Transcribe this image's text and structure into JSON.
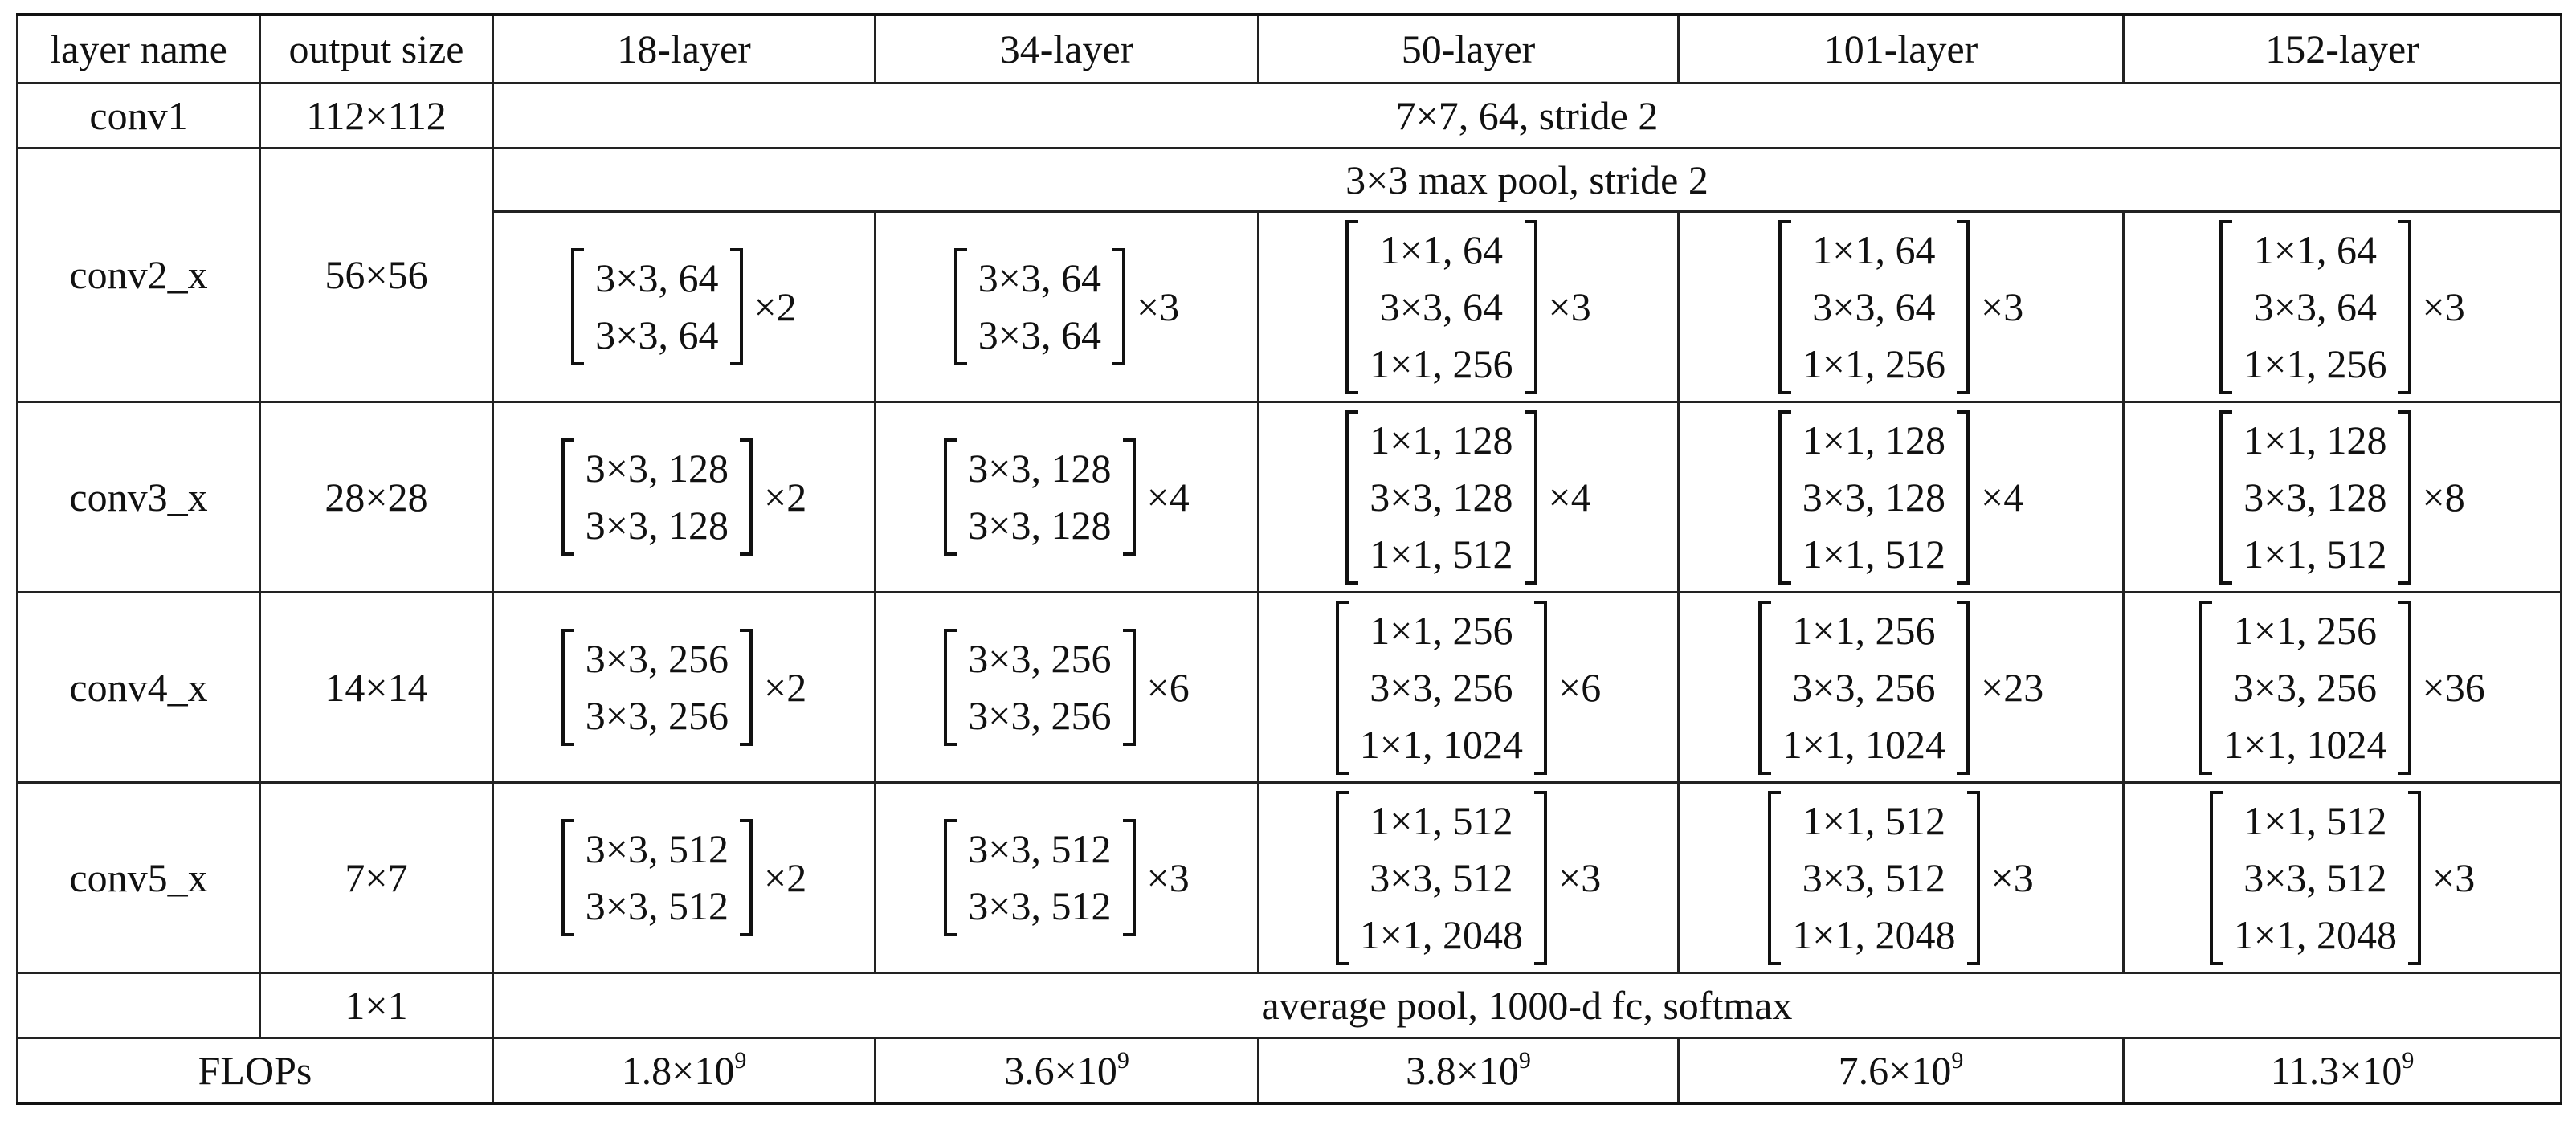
{
  "headers": [
    "layer name",
    "output size",
    "18-layer",
    "34-layer",
    "50-layer",
    "101-layer",
    "152-layer"
  ],
  "conv1": {
    "name": "conv1",
    "output_size": "112×112",
    "spec": "7×7, 64, stride 2"
  },
  "pool": {
    "spec": "3×3 max pool, stride 2"
  },
  "conv2": {
    "name": "conv2_x",
    "output_size": "56×56",
    "cells": [
      {
        "lines": [
          "3×3, 64",
          "3×3, 64"
        ],
        "times": "×2"
      },
      {
        "lines": [
          "3×3, 64",
          "3×3, 64"
        ],
        "times": "×3"
      },
      {
        "lines": [
          "1×1, 64",
          "3×3, 64",
          "1×1, 256"
        ],
        "times": "×3"
      },
      {
        "lines": [
          "1×1, 64",
          "3×3, 64",
          "1×1, 256"
        ],
        "times": "×3"
      },
      {
        "lines": [
          "1×1, 64",
          "3×3, 64",
          "1×1, 256"
        ],
        "times": "×3"
      }
    ]
  },
  "conv3": {
    "name": "conv3_x",
    "output_size": "28×28",
    "cells": [
      {
        "lines": [
          "3×3, 128",
          "3×3, 128"
        ],
        "times": "×2"
      },
      {
        "lines": [
          "3×3, 128",
          "3×3, 128"
        ],
        "times": "×4"
      },
      {
        "lines": [
          "1×1, 128",
          "3×3, 128",
          "1×1, 512"
        ],
        "times": "×4"
      },
      {
        "lines": [
          "1×1, 128",
          "3×3, 128",
          "1×1, 512"
        ],
        "times": "×4"
      },
      {
        "lines": [
          "1×1, 128",
          "3×3, 128",
          "1×1, 512"
        ],
        "times": "×8"
      }
    ]
  },
  "conv4": {
    "name": "conv4_x",
    "output_size": "14×14",
    "cells": [
      {
        "lines": [
          "3×3, 256",
          "3×3, 256"
        ],
        "times": "×2"
      },
      {
        "lines": [
          "3×3, 256",
          "3×3, 256"
        ],
        "times": "×6"
      },
      {
        "lines": [
          "1×1, 256",
          "3×3, 256",
          "1×1, 1024"
        ],
        "times": "×6"
      },
      {
        "lines": [
          "1×1, 256",
          "3×3, 256",
          "1×1, 1024"
        ],
        "times": "×23"
      },
      {
        "lines": [
          "1×1, 256",
          "3×3, 256",
          "1×1, 1024"
        ],
        "times": "×36"
      }
    ]
  },
  "conv5": {
    "name": "conv5_x",
    "output_size": "7×7",
    "cells": [
      {
        "lines": [
          "3×3, 512",
          "3×3, 512"
        ],
        "times": "×2"
      },
      {
        "lines": [
          "3×3, 512",
          "3×3, 512"
        ],
        "times": "×3"
      },
      {
        "lines": [
          "1×1, 512",
          "3×3, 512",
          "1×1, 2048"
        ],
        "times": "×3"
      },
      {
        "lines": [
          "1×1, 512",
          "3×3, 512",
          "1×1, 2048"
        ],
        "times": "×3"
      },
      {
        "lines": [
          "1×1, 512",
          "3×3, 512",
          "1×1, 2048"
        ],
        "times": "×3"
      }
    ]
  },
  "fc": {
    "output_size": "1×1",
    "spec": "average pool, 1000-d fc, softmax"
  },
  "flops": {
    "label": "FLOPs",
    "values": [
      {
        "mantissa": "1.8×10",
        "exp": "9"
      },
      {
        "mantissa": "3.6×10",
        "exp": "9"
      },
      {
        "mantissa": "3.8×10",
        "exp": "9"
      },
      {
        "mantissa": "7.6×10",
        "exp": "9"
      },
      {
        "mantissa": "11.3×10",
        "exp": "9"
      }
    ]
  }
}
